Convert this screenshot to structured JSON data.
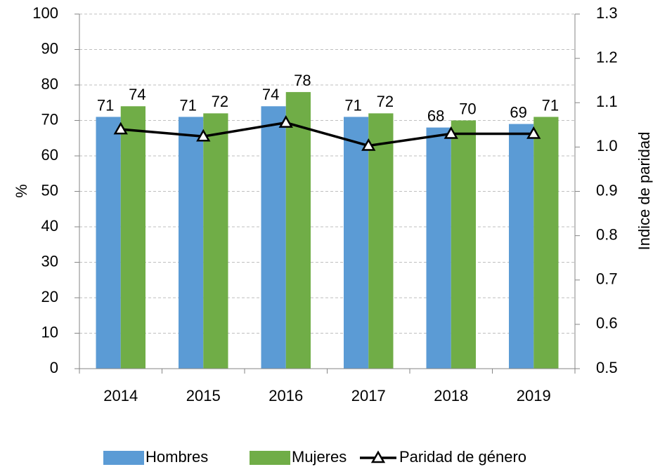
{
  "chart_data": {
    "type": "bar",
    "categories": [
      "2014",
      "2015",
      "2016",
      "2017",
      "2018",
      "2019"
    ],
    "series": [
      {
        "name": "Hombres",
        "color": "#5b9bd5",
        "values": [
          71,
          71,
          74,
          71,
          68,
          69
        ]
      },
      {
        "name": "Mujeres",
        "color": "#70ad47",
        "values": [
          74,
          72,
          78,
          72,
          70,
          71
        ]
      },
      {
        "name": "Paridad de género",
        "color": "#000000",
        "type": "line",
        "axis": "y2",
        "values": [
          1.04,
          1.024,
          1.055,
          1.003,
          1.03,
          1.03
        ]
      }
    ],
    "ylabel": "%",
    "y2label": "Indice de paridad",
    "ylim": [
      0,
      100
    ],
    "yticks": [
      0,
      10,
      20,
      30,
      40,
      50,
      60,
      70,
      80,
      90,
      100
    ],
    "y2lim": [
      0.5,
      1.3
    ],
    "y2ticks": [
      0.5,
      0.6,
      0.7,
      0.8,
      0.9,
      {
        "value": 1,
        "label": "1.0"
      },
      1.1,
      1.2,
      1.3
    ],
    "grid": true,
    "legend": "bottom"
  }
}
